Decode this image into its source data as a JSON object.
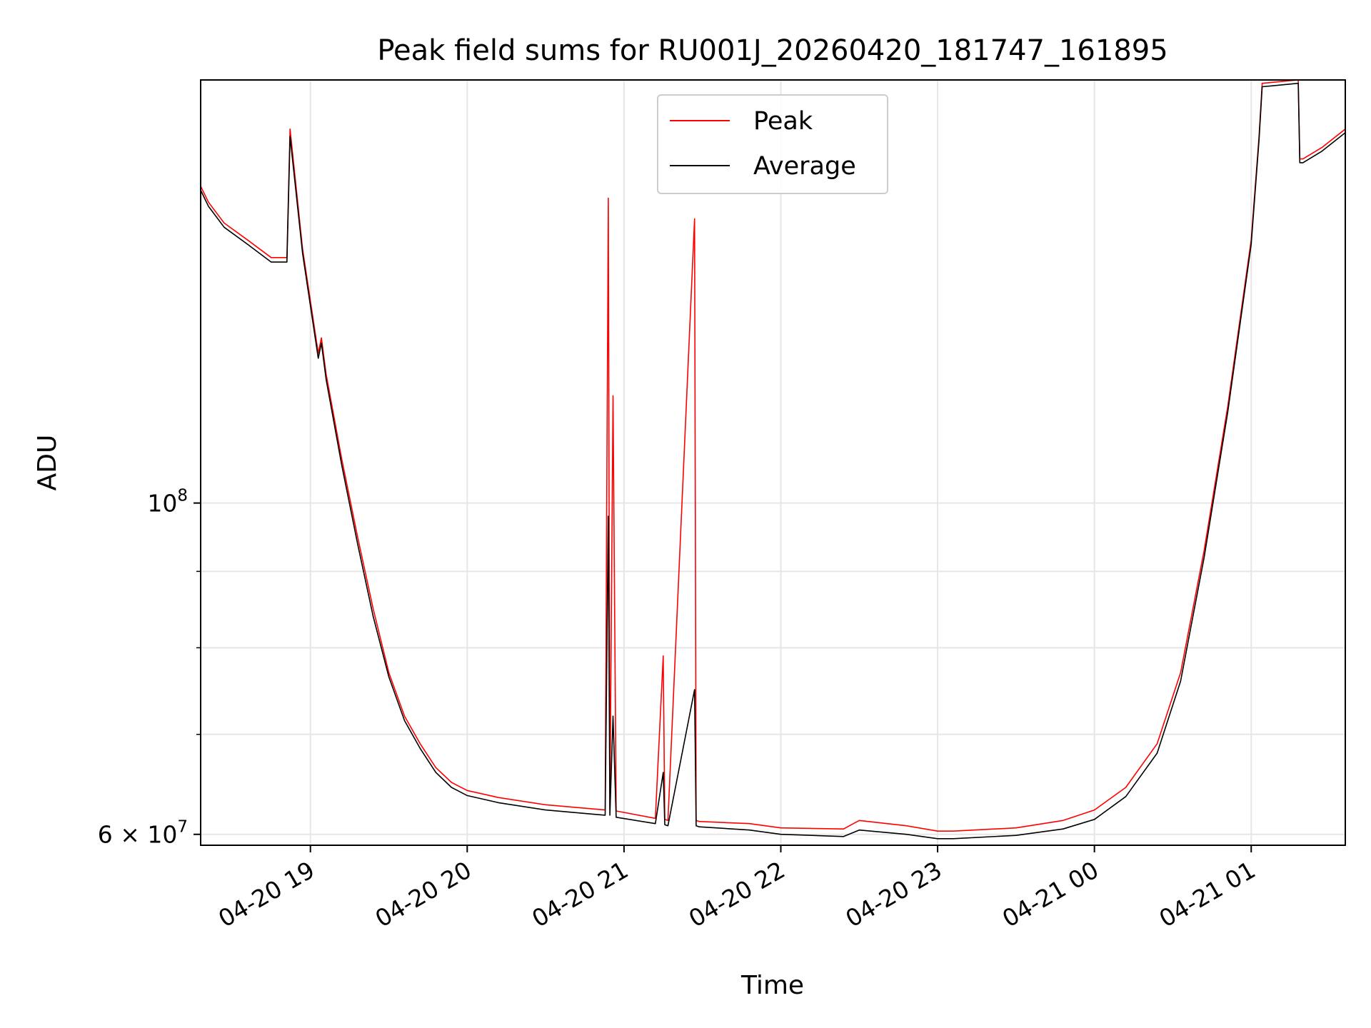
{
  "chart_data": {
    "type": "line",
    "title": "Peak field sums for RU001J_20260420_181747_161895",
    "xlabel": "Time",
    "ylabel": "ADU",
    "yscale": "log",
    "grid": true,
    "legend_position": "top-center",
    "x_unit": "hours since 2026-04-20 18:00",
    "xlim": [
      18.3,
      25.6
    ],
    "ylim": [
      59000000,
      192000000
    ],
    "x_ticks": [
      {
        "value": 19,
        "label": "04-20 19"
      },
      {
        "value": 20,
        "label": "04-20 20"
      },
      {
        "value": 21,
        "label": "04-20 21"
      },
      {
        "value": 22,
        "label": "04-20 22"
      },
      {
        "value": 23,
        "label": "04-20 23"
      },
      {
        "value": 24,
        "label": "04-21 00"
      },
      {
        "value": 25,
        "label": "04-21 01"
      }
    ],
    "y_ticks_major": [
      {
        "value": 60000000,
        "label_base": "6 × 10",
        "label_exp": "7"
      },
      {
        "value": 100000000,
        "label_base": "10",
        "label_exp": "8"
      }
    ],
    "y_ticks_minor": [
      70000000,
      80000000,
      90000000
    ],
    "series": [
      {
        "name": "Peak",
        "color": "#ff0000",
        "x": [
          18.3,
          18.35,
          18.45,
          18.6,
          18.75,
          18.85,
          18.87,
          18.95,
          19.05,
          19.07,
          19.1,
          19.2,
          19.3,
          19.4,
          19.5,
          19.6,
          19.7,
          19.8,
          19.9,
          20.0,
          20.2,
          20.5,
          20.8,
          20.88,
          20.9,
          20.91,
          20.93,
          20.95,
          21.2,
          21.25,
          21.26,
          21.28,
          21.45,
          21.46,
          21.48,
          21.8,
          22.0,
          22.4,
          22.5,
          22.8,
          23.0,
          23.1,
          23.5,
          23.8,
          24.0,
          24.2,
          24.4,
          24.55,
          24.7,
          24.85,
          25.0,
          25.05,
          25.07,
          25.3,
          25.31,
          25.33,
          25.45,
          25.6
        ],
        "y": [
          163000000,
          159000000,
          154000000,
          150000000,
          146000000,
          146000000,
          178000000,
          148000000,
          126000000,
          129000000,
          122000000,
          107000000,
          95000000,
          85000000,
          77000000,
          72000000,
          69000000,
          66500000,
          65000000,
          64200000,
          63500000,
          62800000,
          62400000,
          62300000,
          160000000,
          62400000,
          118000000,
          62200000,
          61500000,
          79000000,
          61400000,
          61300000,
          155000000,
          61300000,
          61200000,
          61000000,
          60600000,
          60500000,
          61300000,
          60800000,
          60300000,
          60300000,
          60600000,
          61300000,
          62300000,
          64500000,
          69000000,
          77000000,
          93000000,
          116000000,
          150000000,
          176000000,
          191000000,
          192000000,
          170000000,
          170000000,
          173000000,
          178000000
        ]
      },
      {
        "name": "Average",
        "color": "#000000",
        "x": [
          18.3,
          18.35,
          18.45,
          18.6,
          18.75,
          18.85,
          18.87,
          18.95,
          19.05,
          19.07,
          19.1,
          19.2,
          19.3,
          19.4,
          19.5,
          19.6,
          19.7,
          19.8,
          19.9,
          20.0,
          20.2,
          20.5,
          20.8,
          20.88,
          20.9,
          20.91,
          20.93,
          20.95,
          21.2,
          21.25,
          21.26,
          21.28,
          21.45,
          21.46,
          21.48,
          21.8,
          22.0,
          22.4,
          22.5,
          22.8,
          23.0,
          23.1,
          23.5,
          23.8,
          24.0,
          24.2,
          24.4,
          24.55,
          24.7,
          24.85,
          25.0,
          25.05,
          25.07,
          25.3,
          25.31,
          25.33,
          25.45,
          25.6
        ],
        "y": [
          162000000,
          158000000,
          153000000,
          149000000,
          145000000,
          145000000,
          176000000,
          147000000,
          125000000,
          128000000,
          121000000,
          106000000,
          94000000,
          84000000,
          76500000,
          71500000,
          68500000,
          66000000,
          64500000,
          63700000,
          63000000,
          62300000,
          61900000,
          61800000,
          98000000,
          61800000,
          72000000,
          61600000,
          61000000,
          66000000,
          60900000,
          60800000,
          75000000,
          60800000,
          60700000,
          60400000,
          60000000,
          59800000,
          60400000,
          60000000,
          59600000,
          59600000,
          59900000,
          60500000,
          61400000,
          63600000,
          68000000,
          76000000,
          92000000,
          115000000,
          149000000,
          175000000,
          190000000,
          191000000,
          169000000,
          169000000,
          172000000,
          177000000
        ]
      }
    ]
  }
}
